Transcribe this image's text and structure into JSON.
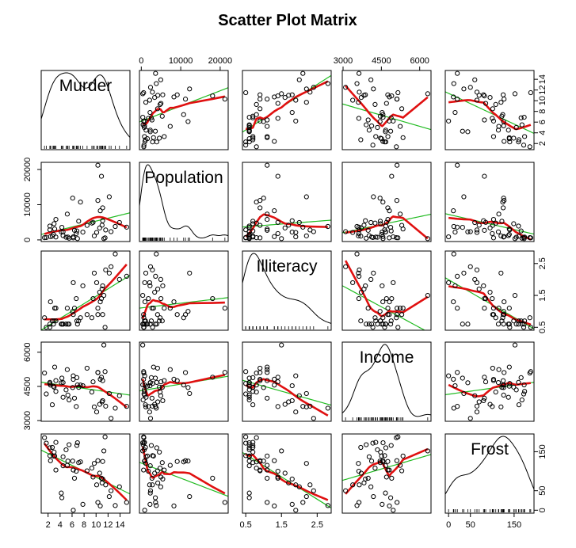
{
  "chart_data": {
    "type": "scatter",
    "title": "Scatter Plot Matrix",
    "variables": [
      "Murder",
      "Population",
      "Illiteracy",
      "Income",
      "Frost"
    ],
    "ranges": {
      "Murder": [
        1.4,
        15.1
      ],
      "Population": [
        365,
        21198
      ],
      "Illiteracy": [
        0.5,
        2.8
      ],
      "Income": [
        3098,
        6315
      ],
      "Frost": [
        0,
        188
      ]
    },
    "ticks": {
      "Murder": [
        "2",
        "4",
        "6",
        "8",
        "10",
        "12",
        "14"
      ],
      "Population": [
        "0",
        "10000",
        "20000"
      ],
      "Illiteracy": [
        "0.5",
        "1.5",
        "2.5"
      ],
      "Illiteracy_bottom": [
        "0.5",
        "1.5",
        "2.5"
      ],
      "Income": [
        "3000",
        "4500",
        "6000"
      ],
      "Frost": [
        "0",
        "50",
        "150"
      ]
    },
    "observations": {
      "Murder": [
        15.1,
        11.3,
        7.8,
        10.1,
        10.3,
        6.8,
        3.1,
        6.2,
        10.7,
        13.9,
        6.2,
        5.3,
        10.3,
        7.1,
        2.3,
        4.5,
        10.6,
        13.2,
        2.7,
        8.5,
        3.3,
        11.1,
        2.3,
        12.5,
        9.3,
        5.0,
        2.9,
        11.5,
        3.3,
        5.2,
        9.7,
        10.9,
        11.1,
        1.4,
        7.4,
        6.4,
        4.2,
        6.1,
        2.4,
        11.6,
        1.7,
        11.0,
        12.2,
        4.5,
        5.5,
        9.5,
        4.3,
        6.7,
        3.0,
        6.9
      ],
      "Population": [
        3615,
        365,
        2212,
        2110,
        21198,
        2541,
        3100,
        579,
        8277,
        4931,
        868,
        813,
        11197,
        5313,
        2861,
        2280,
        3387,
        3806,
        1058,
        4122,
        5814,
        9111,
        3921,
        2341,
        4767,
        746,
        1544,
        590,
        812,
        7333,
        1144,
        18076,
        5441,
        637,
        10735,
        2715,
        2284,
        11860,
        931,
        2816,
        681,
        4173,
        12237,
        1203,
        472,
        4981,
        3559,
        1799,
        4589,
        376
      ],
      "Illiteracy": [
        2.1,
        1.5,
        1.8,
        1.9,
        1.1,
        0.7,
        1.1,
        0.9,
        1.3,
        2.0,
        1.9,
        0.6,
        0.9,
        0.7,
        0.5,
        0.6,
        1.6,
        2.8,
        0.7,
        0.9,
        1.1,
        0.9,
        0.6,
        2.4,
        0.8,
        0.6,
        0.6,
        0.5,
        0.7,
        1.1,
        2.2,
        1.4,
        1.8,
        0.8,
        0.8,
        1.1,
        0.6,
        1.0,
        1.3,
        2.3,
        0.5,
        1.7,
        2.2,
        0.6,
        0.6,
        1.4,
        0.6,
        1.4,
        0.7,
        0.6
      ],
      "Income": [
        3624,
        6315,
        4530,
        3378,
        5114,
        4884,
        5348,
        4809,
        4815,
        4091,
        4963,
        4119,
        5107,
        4458,
        4628,
        4669,
        3712,
        3545,
        3694,
        5299,
        4755,
        4751,
        4675,
        3098,
        4254,
        4347,
        4508,
        5149,
        4281,
        5237,
        3601,
        4903,
        3875,
        5087,
        4561,
        3983,
        4660,
        4449,
        4558,
        3635,
        4167,
        3821,
        4188,
        4022,
        3907,
        4701,
        4864,
        3617,
        4468,
        4566
      ],
      "Frost": [
        20,
        152,
        15,
        65,
        20,
        166,
        139,
        103,
        11,
        60,
        0,
        126,
        127,
        122,
        140,
        114,
        95,
        12,
        161,
        101,
        103,
        125,
        160,
        50,
        108,
        155,
        139,
        188,
        174,
        115,
        120,
        82,
        80,
        186,
        124,
        82,
        44,
        126,
        127,
        65,
        172,
        70,
        35,
        137,
        168,
        85,
        32,
        100,
        149,
        173
      ]
    },
    "lines": [
      "linear fit (green)",
      "smoothed fit (red)"
    ],
    "diagonal": "kernel density with rug",
    "xlabel": "",
    "ylabel": ""
  },
  "colors": {
    "points": "#000000",
    "linear_fit": "#22bb22",
    "smooth_fit": "#e01010",
    "density": "#000000"
  }
}
